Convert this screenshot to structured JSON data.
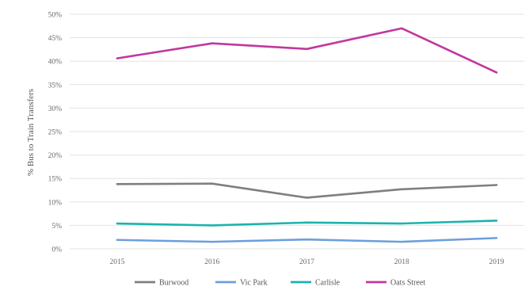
{
  "chart_data": {
    "type": "line",
    "title": "",
    "xlabel": "",
    "ylabel": "% Bus to Train Transfers",
    "categories": [
      "2015",
      "2016",
      "2017",
      "2018",
      "2019"
    ],
    "ylim": [
      0,
      50
    ],
    "yticks": [
      "0%",
      "5%",
      "10%",
      "15%",
      "20%",
      "25%",
      "30%",
      "35%",
      "40%",
      "45%",
      "50%"
    ],
    "grid": "horizontal",
    "legend_position": "bottom",
    "series": [
      {
        "name": "Burwood",
        "color": "#7f7f7f",
        "values": [
          13.8,
          13.9,
          10.9,
          12.7,
          13.6
        ]
      },
      {
        "name": "Vic Park",
        "color": "#6d9fdb",
        "values": [
          1.9,
          1.5,
          2.0,
          1.5,
          2.3
        ]
      },
      {
        "name": "Carlisle",
        "color": "#1bb3b0",
        "values": [
          5.4,
          5.0,
          5.6,
          5.4,
          6.0
        ]
      },
      {
        "name": "Oats Street",
        "color": "#c2379e",
        "values": [
          40.6,
          43.8,
          42.6,
          47.0,
          37.6
        ]
      }
    ]
  }
}
